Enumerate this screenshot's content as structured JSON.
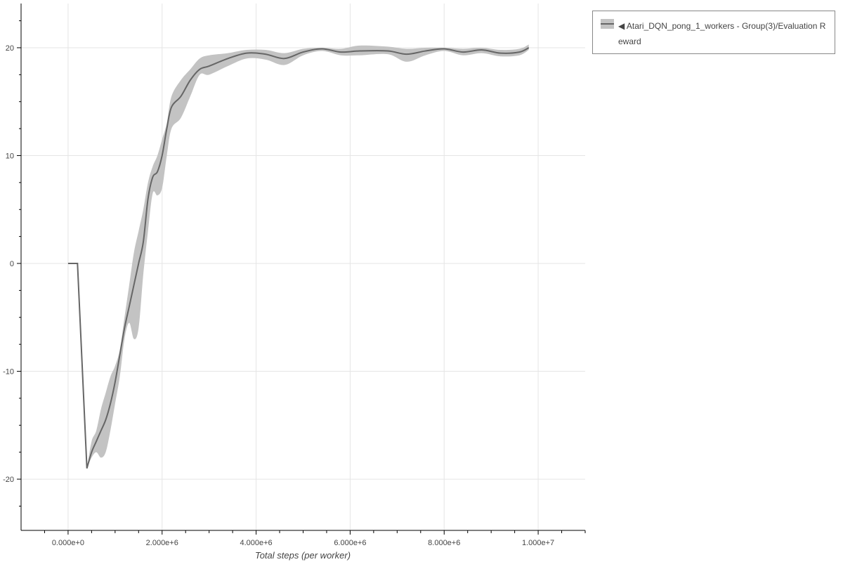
{
  "chart_data": {
    "type": "line",
    "title": "",
    "xlabel": "Total steps (per worker)",
    "ylabel": "",
    "xlim": [
      -1000000,
      11000000
    ],
    "ylim": [
      -24.75,
      24.1
    ],
    "xticks": [
      0,
      2000000,
      4000000,
      6000000,
      8000000,
      10000000
    ],
    "xtick_labels": [
      "0.000e+0",
      "2.000e+6",
      "4.000e+6",
      "6.000e+6",
      "8.000e+6",
      "1.000e+7"
    ],
    "yticks": [
      -20,
      -10,
      0,
      10,
      20
    ],
    "ytick_labels": [
      "-20",
      "-10",
      "0",
      "10",
      "20"
    ],
    "grid": true,
    "legend_position": "outside-top-right",
    "colors": {
      "line": "#666666",
      "band": "#c3c3c3",
      "grid": "#e5e5e5"
    },
    "series": [
      {
        "name": "◀ Atari_DQN_pong_1_workers - Group(3)/Evaluation Reward",
        "x": [
          0,
          200000,
          400000,
          500000,
          600000,
          700000,
          800000,
          900000,
          1000000,
          1100000,
          1200000,
          1300000,
          1400000,
          1500000,
          1600000,
          1700000,
          1800000,
          1900000,
          2000000,
          2100000,
          2200000,
          2400000,
          2600000,
          2800000,
          3000000,
          3400000,
          3800000,
          4200000,
          4600000,
          5000000,
          5400000,
          5800000,
          6200000,
          6800000,
          7200000,
          7600000,
          8000000,
          8400000,
          8800000,
          9200000,
          9600000,
          9800000
        ],
        "mean": [
          0,
          0,
          -19,
          -17.5,
          -16.5,
          -15.5,
          -14.5,
          -13,
          -11,
          -8.5,
          -6,
          -4,
          -2,
          0,
          2,
          6,
          8,
          8.5,
          10,
          12.5,
          14.5,
          15.5,
          17,
          18,
          18.3,
          19,
          19.5,
          19.4,
          19,
          19.6,
          19.9,
          19.6,
          19.7,
          19.7,
          19.4,
          19.7,
          19.9,
          19.6,
          19.8,
          19.5,
          19.6,
          20
        ],
        "lower": [
          0,
          0,
          -19,
          -18,
          -17.5,
          -18,
          -17.5,
          -15.5,
          -13,
          -10.5,
          -7,
          -5.5,
          -7,
          -6,
          -1,
          3,
          6.5,
          6.3,
          7,
          10,
          12.5,
          13.5,
          15.5,
          17.5,
          17.5,
          18.3,
          19,
          18.9,
          18.4,
          19.3,
          19.7,
          19.3,
          19.3,
          19.4,
          18.7,
          19.3,
          19.7,
          19.3,
          19.5,
          19.2,
          19.3,
          19.8
        ],
        "upper": [
          0,
          0,
          -19,
          -16.5,
          -15.5,
          -13.5,
          -12,
          -10.5,
          -9.5,
          -8,
          -5,
          -2,
          1,
          3,
          5,
          7.5,
          9,
          10,
          11.5,
          13,
          15.5,
          17,
          18,
          19,
          19.3,
          19.5,
          19.8,
          19.8,
          19.5,
          19.9,
          20,
          19.9,
          20.2,
          20.1,
          19.9,
          20,
          20,
          19.9,
          20,
          19.8,
          19.9,
          20.3
        ]
      }
    ]
  }
}
